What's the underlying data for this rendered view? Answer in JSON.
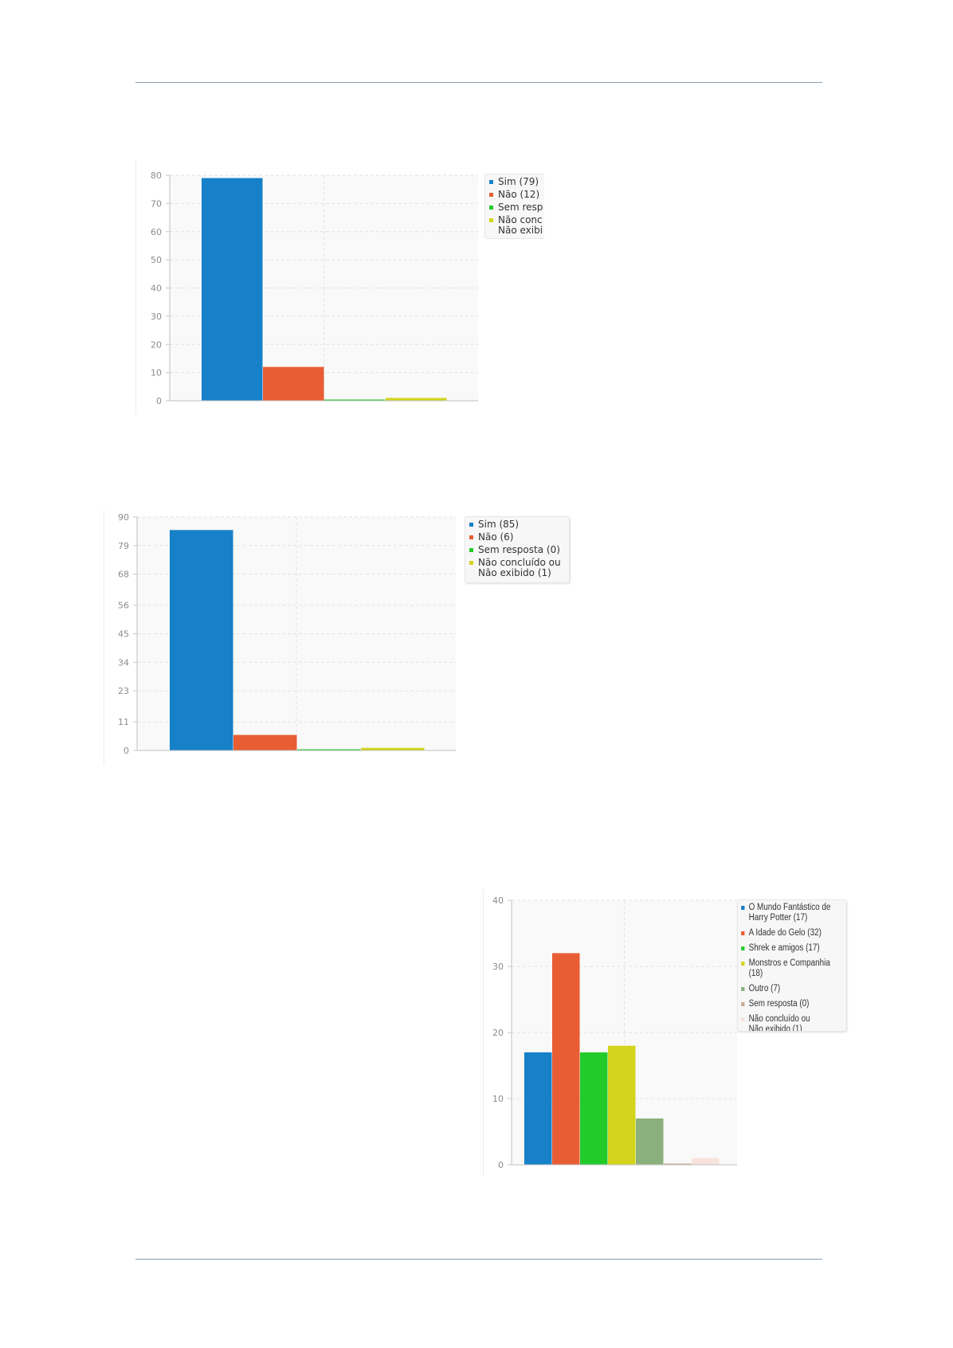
{
  "colors": {
    "blue": "#1680c8",
    "orange": "#e85d33",
    "green": "#22cb2a",
    "yellow": "#d3d41d",
    "sage": "#8ab07c",
    "tan": "#c9a98c",
    "pale": "#f7e2dc",
    "grid": "#e3e3e3",
    "plot_bg": "#f9f9f9"
  },
  "chart_data": [
    {
      "type": "bar",
      "categories": [
        "Sim (79)",
        "Não (12)",
        "Sem resp",
        "Não conc\nNão exibi"
      ],
      "values": [
        79,
        12,
        0,
        1
      ],
      "ylim": [
        0,
        80
      ],
      "yticks": [
        0,
        10,
        20,
        30,
        40,
        50,
        60,
        70,
        80
      ],
      "legend": [
        "Sim (79)",
        "Não (12)",
        "Sem resp",
        "Não conc\nNão exibi"
      ],
      "legend_position": "right (clipped)",
      "grid": true
    },
    {
      "type": "bar",
      "categories": [
        "Sim (85)",
        "Não (6)",
        "Sem resposta (0)",
        "Não concluído ou\nNão exibido (1)"
      ],
      "values": [
        85,
        6,
        0,
        1
      ],
      "ylim": [
        0,
        90
      ],
      "yticks": [
        0,
        11,
        23,
        34,
        45,
        56,
        68,
        79,
        90
      ],
      "legend": [
        "Sim (85)",
        "Não (6)",
        "Sem resposta (0)",
        "Não concluído ou\nNão exibido (1)"
      ],
      "legend_position": "top-right",
      "grid": true
    },
    {
      "type": "bar",
      "categories": [
        "O Mundo Fantástico de\nHarry Potter (17)",
        "A Idade do Gelo (32)",
        "Shrek e amigos (17)",
        "Monstros e Companhia (18)",
        "Outro (7)",
        "Sem resposta (0)",
        "Não concluído ou\nNão exibido (1)"
      ],
      "values": [
        17,
        32,
        17,
        18,
        7,
        0,
        1
      ],
      "ylim": [
        0,
        40
      ],
      "yticks": [
        0,
        10,
        20,
        30,
        40
      ],
      "legend": [
        "O Mundo Fantástico de\nHarry Potter (17)",
        "A Idade do Gelo (32)",
        "Shrek e amigos (17)",
        "Monstros e Companhia (18)",
        "Outro (7)",
        "Sem resposta (0)",
        "Não concluído ou\nNão exibido (1)"
      ],
      "legend_position": "top-right",
      "grid": true
    }
  ]
}
